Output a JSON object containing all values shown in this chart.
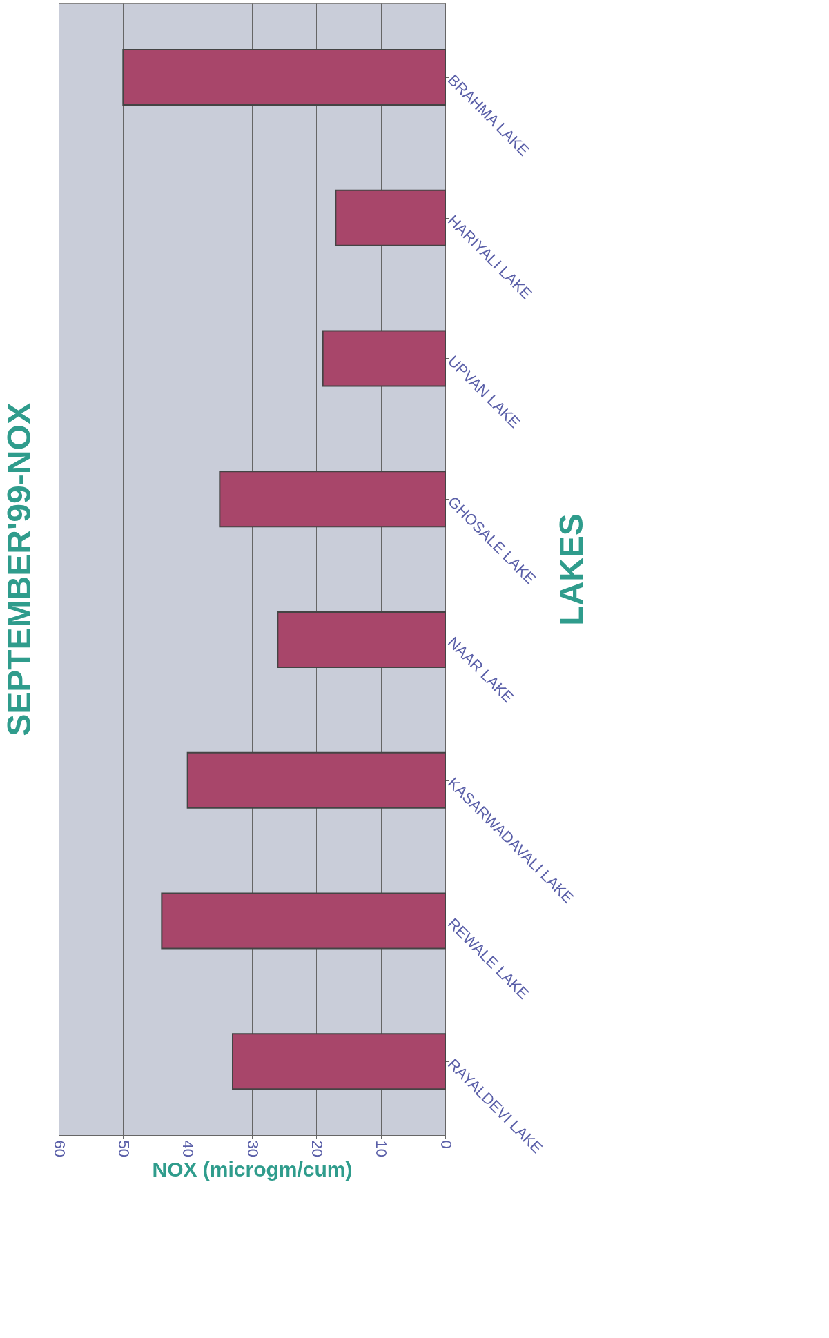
{
  "chart_data": {
    "type": "bar",
    "orientation": "horizontal",
    "title": "SEPTEMBER'99-NOX",
    "xlabel": "NOX (microgm/cum)",
    "ylabel": "LAKES",
    "categories": [
      "BRAHMA LAKE",
      "HARIYALI LAKE",
      "UPVAN LAKE",
      "GHOSALE LAKE",
      "NAAR LAKE",
      "KASARWADAVALI LAKE",
      "REWALE LAKE",
      "RAYALDEVI LAKE"
    ],
    "values": [
      50,
      17,
      19,
      35,
      26,
      40,
      44,
      33
    ],
    "color": "#a8466a",
    "xlim": [
      60,
      0
    ],
    "xticks": [
      0,
      10,
      20,
      30,
      40,
      50,
      60
    ],
    "grid": "x"
  }
}
